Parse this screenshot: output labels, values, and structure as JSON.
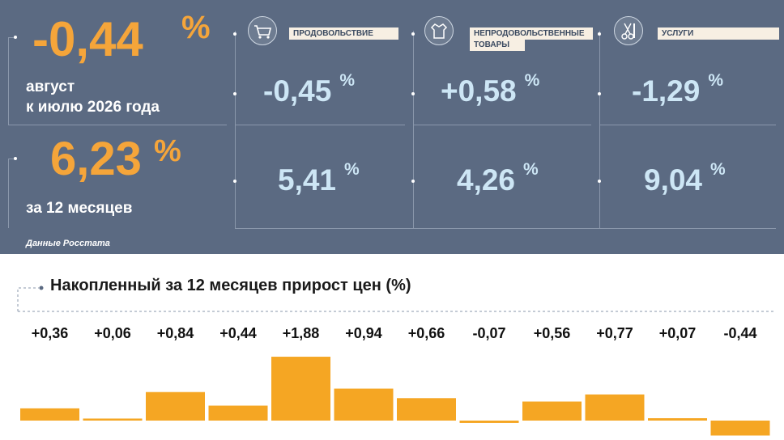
{
  "headline": {
    "month_value": "-0,44",
    "month_pct": "%",
    "month_label_line1": "август",
    "month_label_line2": "к июлю 2026 года",
    "year_value": "6,23",
    "year_pct": "%",
    "year_label": "за 12 месяцев",
    "source": "Данные Росстата"
  },
  "categories": [
    {
      "label": "ПРОДОВОЛЬСТВИЕ",
      "icon": "shopping-cart-icon",
      "month": "-0,45",
      "year": "5,41",
      "pct": "%"
    },
    {
      "label_line1": "НЕПРОДОВОЛЬСТВЕННЫЕ",
      "label_line2": "ТОВАРЫ",
      "icon": "clothing-icon",
      "month": "+0,58",
      "year": "4,26",
      "pct": "%"
    },
    {
      "label": "УСЛУГИ",
      "icon": "scissors-comb-icon",
      "month": "-1,29",
      "year": "9,04",
      "pct": "%"
    }
  ],
  "colors": {
    "panel": "#5b6a82",
    "accent": "#f5a53a",
    "value": "#cde6f5",
    "bar": "#f5a623"
  },
  "chart_data": {
    "type": "bar",
    "title": "Накопленный за 12 месяцев прирост цен (%)",
    "labels": [
      "+0,36",
      "+0,06",
      "+0,84",
      "+0,44",
      "+1,88",
      "+0,94",
      "+0,66",
      "-0,07",
      "+0,56",
      "+0,77",
      "+0,07",
      "-0,44"
    ],
    "values": [
      0.36,
      0.06,
      0.84,
      0.44,
      1.88,
      0.94,
      0.66,
      -0.07,
      0.56,
      0.77,
      0.07,
      -0.44
    ]
  }
}
